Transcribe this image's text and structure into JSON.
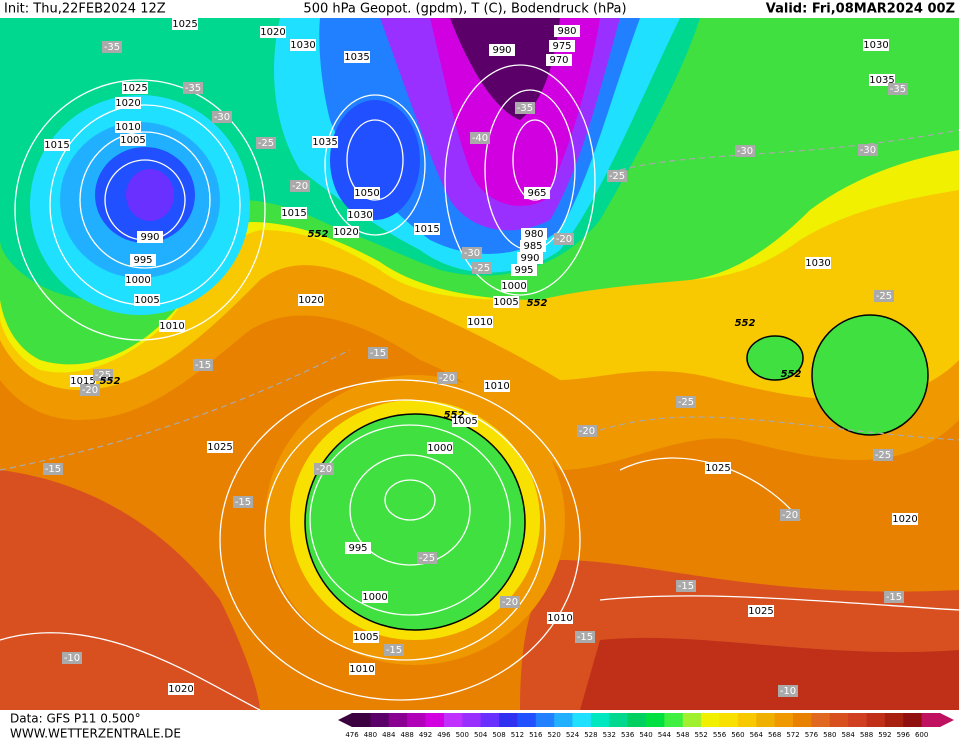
{
  "header": {
    "init": "Init: Thu,22FEB2024 12Z",
    "title": "500 hPa Geopot. (gpdm), T (C), Bodendruck (hPa)",
    "valid": "Valid: Fri,08MAR2024 00Z"
  },
  "footer": {
    "source": "Data: GFS P11 0.500°",
    "site": "WWW.WETTERZENTRALE.DE"
  },
  "map": {
    "isobar_labels": [
      1025,
      1020,
      1030,
      1035,
      1025,
      1020,
      1010,
      1005,
      1015,
      990,
      995,
      1000,
      1005,
      1010,
      1015,
      1020,
      1035,
      1050,
      1030,
      1020,
      1015,
      1015,
      980,
      975,
      970,
      990,
      965,
      980,
      985,
      990,
      995,
      1000,
      1005,
      1010,
      1010,
      1005,
      1000,
      995,
      1000,
      1005,
      1010,
      1020,
      1025,
      1030,
      1035,
      1030,
      1025,
      1020,
      1025,
      1010
    ],
    "temperature_labels": [
      -35,
      -35,
      -30,
      -25,
      -20,
      -40,
      -35,
      -30,
      -25,
      -20,
      -25,
      -30,
      -35,
      -30,
      -25,
      -25,
      -20,
      -25,
      -20,
      -15,
      -15,
      -20,
      -20,
      -15,
      -15,
      -25,
      -20,
      -15,
      -15,
      -15,
      -15,
      -10,
      -10,
      -25,
      -20
    ],
    "geopotential_labels": [
      552,
      552,
      552,
      552,
      552,
      552
    ]
  },
  "colorbar": {
    "values": [
      476,
      480,
      484,
      488,
      492,
      496,
      500,
      504,
      508,
      512,
      516,
      520,
      524,
      528,
      532,
      536,
      540,
      544,
      548,
      552,
      556,
      560,
      564,
      568,
      572,
      576,
      580,
      584,
      588,
      592,
      596,
      600
    ],
    "colors": [
      "#3a0040",
      "#5a0068",
      "#8a0090",
      "#b000b8",
      "#d000e0",
      "#c030ff",
      "#9a30ff",
      "#6a30ff",
      "#3030f0",
      "#2050ff",
      "#2080ff",
      "#20b0ff",
      "#20e0ff",
      "#00e8c0",
      "#00d890",
      "#00d060",
      "#00e040",
      "#40f040",
      "#a0f030",
      "#f0f000",
      "#f8e000",
      "#f8c800",
      "#f0b000",
      "#f09800",
      "#e88000",
      "#e06820",
      "#d85020",
      "#d04020",
      "#c03018",
      "#a82010",
      "#901010",
      "#c01060"
    ]
  }
}
